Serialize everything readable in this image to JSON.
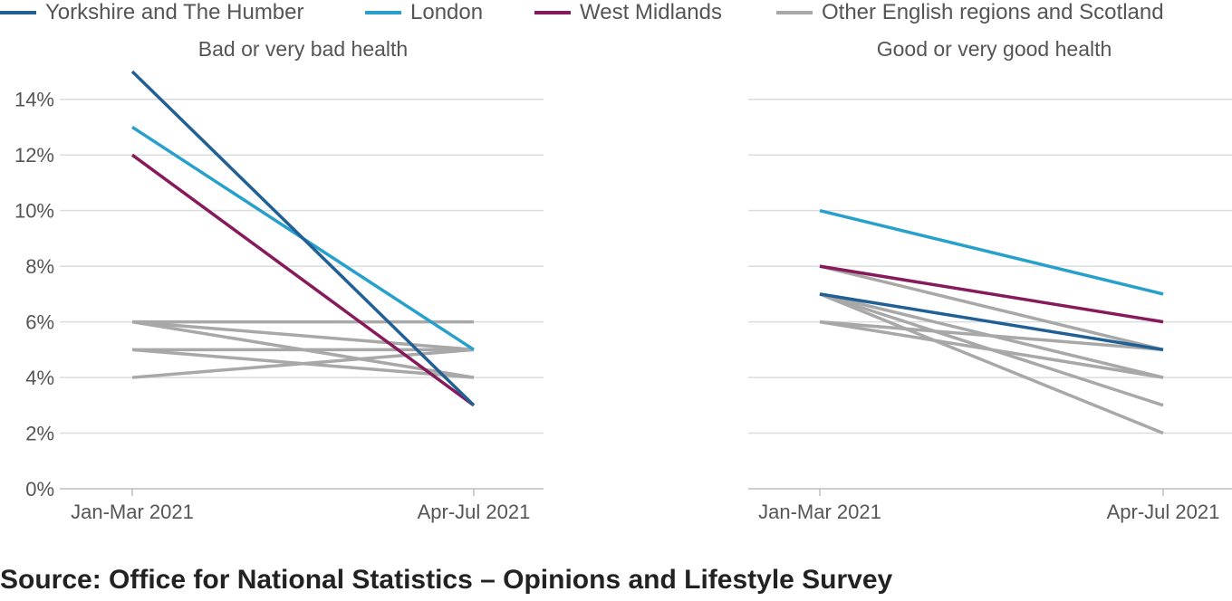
{
  "chart_data": {
    "type": "line",
    "legend": [
      {
        "label": "Yorkshire and The Humber",
        "color": "#206095"
      },
      {
        "label": "London",
        "color": "#27a0cc"
      },
      {
        "label": "West Midlands",
        "color": "#871a5b"
      },
      {
        "label": "Other English regions and Scotland",
        "color": "#a8a8a8"
      }
    ],
    "legend_placement": "top",
    "ylim": [
      0,
      15
    ],
    "y_ticks": [
      "0%",
      "2%",
      "4%",
      "6%",
      "8%",
      "10%",
      "12%",
      "14%"
    ],
    "grid": true,
    "panels": [
      {
        "title": "Bad or very bad health",
        "x_labels": [
          "Jan-Mar 2021",
          "Apr-Jul 2021"
        ],
        "series": [
          {
            "name": "Other English regions and Scotland",
            "color": "#a8a8a8",
            "values": [
              6,
              6
            ]
          },
          {
            "name": "Other English regions and Scotland",
            "color": "#a8a8a8",
            "values": [
              6,
              5
            ]
          },
          {
            "name": "Other English regions and Scotland",
            "color": "#a8a8a8",
            "values": [
              6,
              4
            ]
          },
          {
            "name": "Other English regions and Scotland",
            "color": "#a8a8a8",
            "values": [
              5,
              5
            ]
          },
          {
            "name": "Other English regions and Scotland",
            "color": "#a8a8a8",
            "values": [
              5,
              4
            ]
          },
          {
            "name": "Other English regions and Scotland",
            "color": "#a8a8a8",
            "values": [
              4,
              5
            ]
          },
          {
            "name": "West Midlands",
            "color": "#871a5b",
            "values": [
              12,
              3
            ]
          },
          {
            "name": "London",
            "color": "#27a0cc",
            "values": [
              13,
              5
            ]
          },
          {
            "name": "Yorkshire and The Humber",
            "color": "#206095",
            "values": [
              15,
              3
            ]
          }
        ]
      },
      {
        "title": "Good or very good health",
        "x_labels": [
          "Jan-Mar 2021",
          "Apr-Jul 2021"
        ],
        "series": [
          {
            "name": "Other English regions and Scotland",
            "color": "#a8a8a8",
            "values": [
              8,
              5
            ]
          },
          {
            "name": "Other English regions and Scotland",
            "color": "#a8a8a8",
            "values": [
              7,
              4
            ]
          },
          {
            "name": "Other English regions and Scotland",
            "color": "#a8a8a8",
            "values": [
              7,
              3
            ]
          },
          {
            "name": "Other English regions and Scotland",
            "color": "#a8a8a8",
            "values": [
              7,
              2
            ]
          },
          {
            "name": "Other English regions and Scotland",
            "color": "#a8a8a8",
            "values": [
              6,
              5
            ]
          },
          {
            "name": "Other English regions and Scotland",
            "color": "#a8a8a8",
            "values": [
              6,
              4
            ]
          },
          {
            "name": "Yorkshire and The Humber",
            "color": "#206095",
            "values": [
              7,
              5
            ]
          },
          {
            "name": "West Midlands",
            "color": "#871a5b",
            "values": [
              8,
              6
            ]
          },
          {
            "name": "London",
            "color": "#27a0cc",
            "values": [
              10,
              7
            ]
          }
        ]
      }
    ]
  },
  "source": "Source: Office for National Statistics – Opinions and Lifestyle Survey"
}
